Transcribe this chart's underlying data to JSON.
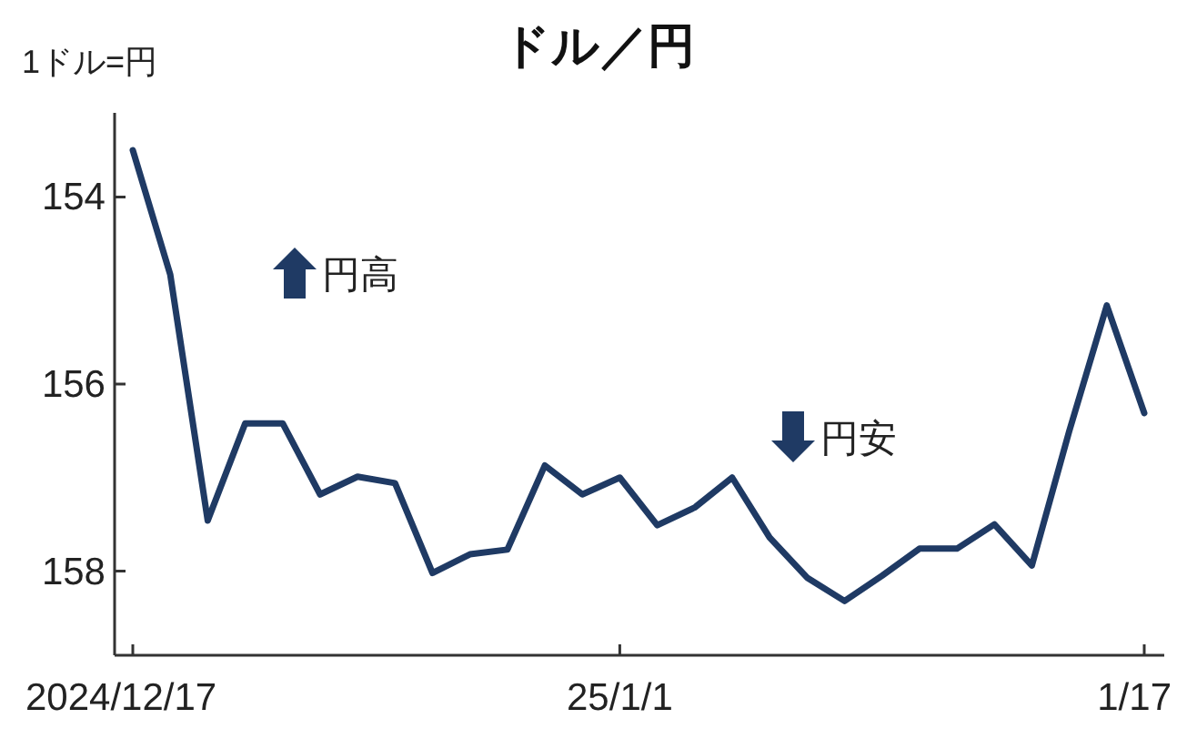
{
  "chart_data": {
    "type": "line",
    "title": "ドル／円",
    "ylabel": "1ドル=円",
    "categories": [
      "2024/12/17",
      null,
      null,
      null,
      null,
      null,
      null,
      null,
      null,
      null,
      null,
      null,
      null,
      "25/1/1",
      null,
      null,
      null,
      null,
      null,
      null,
      null,
      null,
      null,
      null,
      null,
      null,
      null,
      "1/17"
    ],
    "series": [
      {
        "color": "#1f3a64",
        "values": [
          153.5,
          154.83,
          157.46,
          156.42,
          156.42,
          157.18,
          156.99,
          157.06,
          158.02,
          157.82,
          157.77,
          156.87,
          157.18,
          157.0,
          157.51,
          157.32,
          157.0,
          157.64,
          158.07,
          158.32,
          158.05,
          157.76,
          157.76,
          157.5,
          157.94,
          156.5,
          155.16,
          156.31
        ]
      }
    ],
    "ylim": [
      158.9,
      153.1
    ],
    "yticks": [
      154,
      156,
      158
    ],
    "grid": false,
    "marker": "none",
    "line_style": "solid",
    "annotations": [
      "円高",
      "円安"
    ]
  }
}
